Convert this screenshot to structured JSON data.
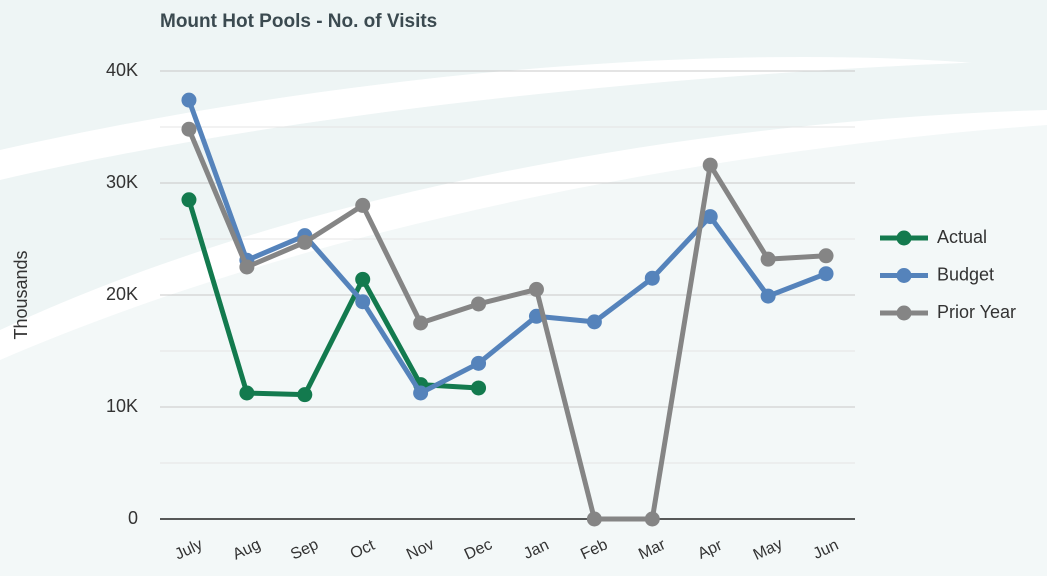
{
  "chart_data": {
    "type": "line",
    "title": "Mount Hot Pools - No. of Visits",
    "y_label": "Thousands",
    "categories": [
      "July",
      "Aug",
      "Sep",
      "Oct",
      "Nov",
      "Dec",
      "Jan",
      "Feb",
      "Mar",
      "Apr",
      "May",
      "Jun"
    ],
    "series": [
      {
        "name": "Actual",
        "color": "#137a4e",
        "values": [
          28500,
          11250,
          11100,
          21400,
          12000,
          11700,
          null,
          null,
          null,
          null,
          null,
          null
        ]
      },
      {
        "name": "Budget",
        "color": "#5583bb",
        "values": [
          37400,
          23100,
          25300,
          19400,
          11250,
          13900,
          18100,
          17600,
          21500,
          27000,
          19900,
          21900
        ]
      },
      {
        "name": "Prior Year",
        "color": "#858585",
        "values": [
          34800,
          22500,
          24700,
          28000,
          17500,
          19200,
          20500,
          0,
          0,
          31600,
          23200,
          23500
        ]
      }
    ],
    "ylim": [
      0,
      40000
    ],
    "yticks": [
      0,
      {
        "value": 10000,
        "label": "10K"
      },
      {
        "value": 20000,
        "label": "20K"
      },
      {
        "value": 30000,
        "label": "30K"
      },
      {
        "value": 40000,
        "label": "40K"
      }
    ],
    "grid": true,
    "legend": "right"
  }
}
